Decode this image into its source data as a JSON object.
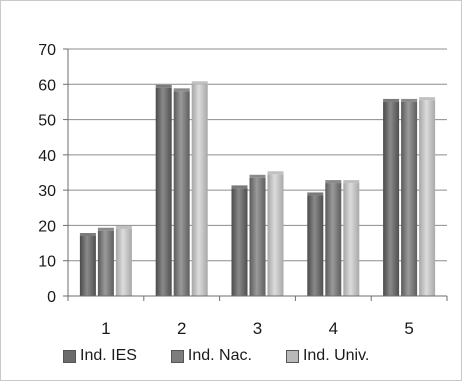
{
  "chart_data": {
    "type": "bar",
    "categories": [
      "1",
      "2",
      "3",
      "4",
      "5"
    ],
    "series": [
      {
        "name": "Ind. IES",
        "values": [
          17,
          59,
          30.5,
          28.5,
          55
        ],
        "color": "#6b6b6b"
      },
      {
        "name": "Ind. Nac.",
        "values": [
          18.5,
          58,
          33.5,
          32,
          55
        ],
        "color": "#7d7d7d"
      },
      {
        "name": "Ind. Univ.",
        "values": [
          19,
          60,
          34.5,
          32,
          55.5
        ],
        "color": "#b9b9b9"
      }
    ],
    "ylim": [
      0,
      70
    ],
    "yticks": [
      0,
      10,
      20,
      30,
      40,
      50,
      60,
      70
    ],
    "grid": true,
    "legend_position": "bottom",
    "title": "",
    "xlabel": "",
    "ylabel": ""
  }
}
